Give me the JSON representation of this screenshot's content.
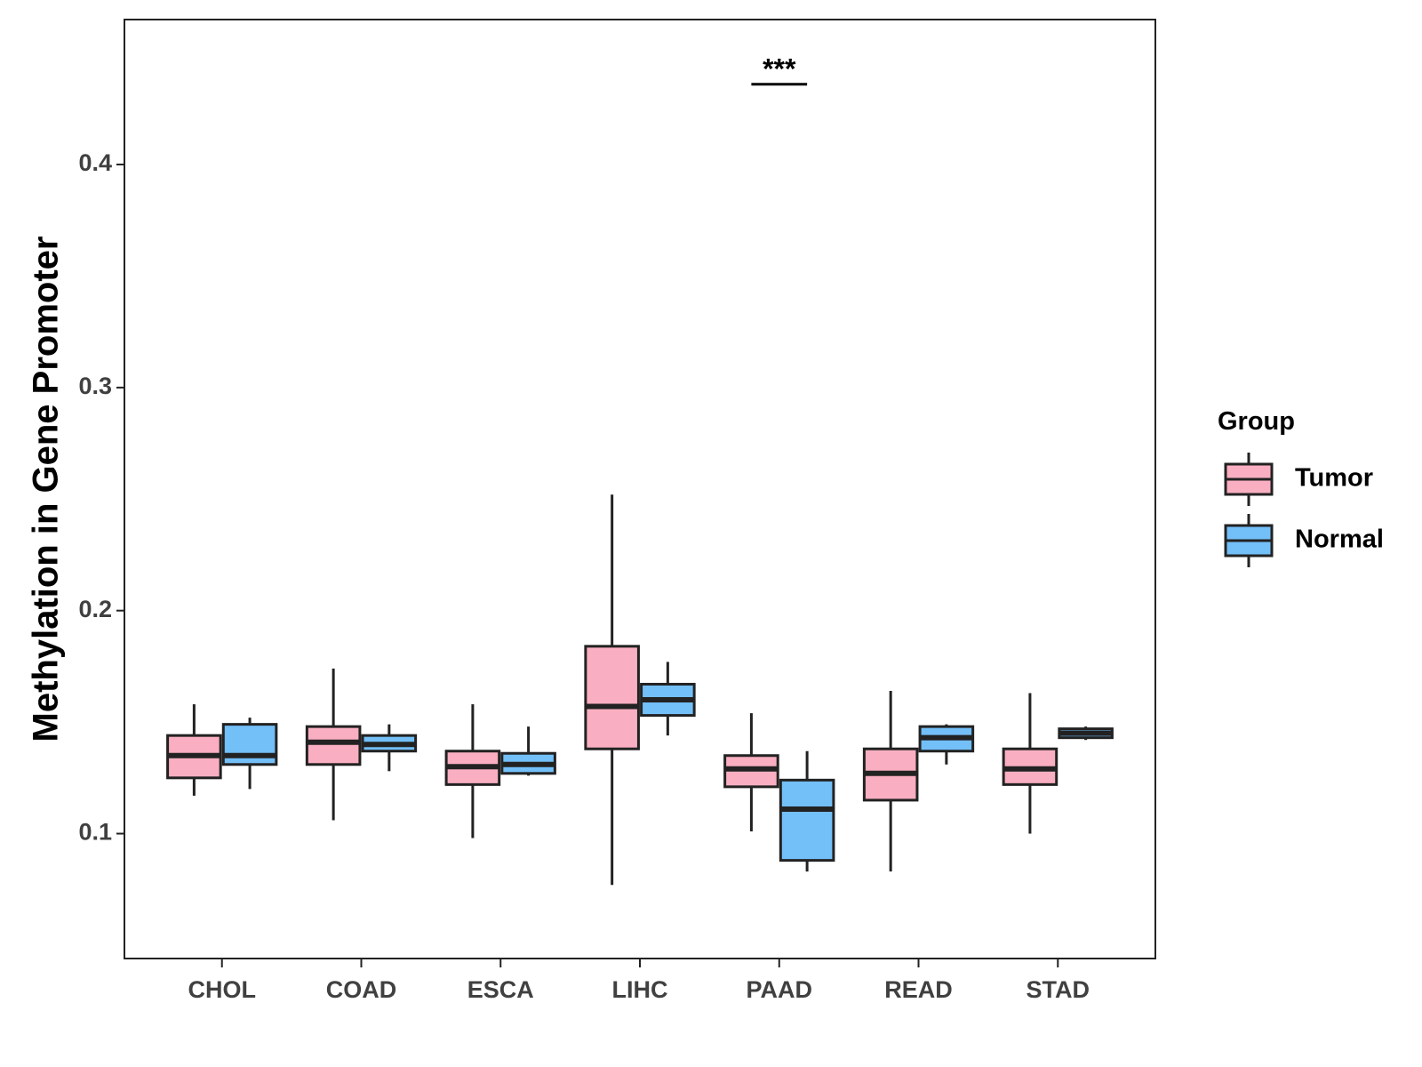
{
  "chart_data": {
    "type": "boxplot",
    "title": "",
    "xlabel": "",
    "ylabel": "Methylation in Gene Promoter",
    "ylim": [
      0.044,
      0.465
    ],
    "yticks": [
      0.1,
      0.2,
      0.3,
      0.4
    ],
    "ytick_labels": [
      "0.1",
      "0.2",
      "0.3",
      "0.4"
    ],
    "categories": [
      "CHOL",
      "COAD",
      "ESCA",
      "LIHC",
      "PAAD",
      "READ",
      "STAD"
    ],
    "grid": false,
    "legend": {
      "title": "Group",
      "position": "right",
      "entries": [
        {
          "name": "Tumor",
          "color": "#F9AFC1"
        },
        {
          "name": "Normal",
          "color": "#73BFF8"
        }
      ]
    },
    "series": [
      {
        "name": "Tumor",
        "color": "#F9AFC1",
        "boxes": [
          {
            "category": "CHOL",
            "min": 0.117,
            "q1": 0.125,
            "median": 0.135,
            "q3": 0.144,
            "max": 0.158
          },
          {
            "category": "COAD",
            "min": 0.106,
            "q1": 0.131,
            "median": 0.141,
            "q3": 0.148,
            "max": 0.174
          },
          {
            "category": "ESCA",
            "min": 0.098,
            "q1": 0.122,
            "median": 0.13,
            "q3": 0.137,
            "max": 0.158
          },
          {
            "category": "LIHC",
            "min": 0.077,
            "q1": 0.138,
            "median": 0.157,
            "q3": 0.184,
            "max": 0.252
          },
          {
            "category": "PAAD",
            "min": 0.101,
            "q1": 0.121,
            "median": 0.129,
            "q3": 0.135,
            "max": 0.154
          },
          {
            "category": "READ",
            "min": 0.083,
            "q1": 0.115,
            "median": 0.127,
            "q3": 0.138,
            "max": 0.164
          },
          {
            "category": "STAD",
            "min": 0.1,
            "q1": 0.122,
            "median": 0.129,
            "q3": 0.138,
            "max": 0.163
          }
        ]
      },
      {
        "name": "Normal",
        "color": "#73BFF8",
        "boxes": [
          {
            "category": "CHOL",
            "min": 0.12,
            "q1": 0.131,
            "median": 0.135,
            "q3": 0.149,
            "max": 0.152
          },
          {
            "category": "COAD",
            "min": 0.128,
            "q1": 0.137,
            "median": 0.14,
            "q3": 0.144,
            "max": 0.149
          },
          {
            "category": "ESCA",
            "min": 0.126,
            "q1": 0.127,
            "median": 0.131,
            "q3": 0.136,
            "max": 0.148
          },
          {
            "category": "LIHC",
            "min": 0.144,
            "q1": 0.153,
            "median": 0.16,
            "q3": 0.167,
            "max": 0.177
          },
          {
            "category": "PAAD",
            "min": 0.083,
            "q1": 0.088,
            "median": 0.111,
            "q3": 0.124,
            "max": 0.137
          },
          {
            "category": "READ",
            "min": 0.131,
            "q1": 0.137,
            "median": 0.143,
            "q3": 0.148,
            "max": 0.149
          },
          {
            "category": "STAD",
            "min": 0.142,
            "q1": 0.143,
            "median": 0.145,
            "q3": 0.147,
            "max": 0.148
          }
        ]
      }
    ],
    "annotations": [
      {
        "category": "PAAD",
        "text": "***",
        "y": 0.436
      }
    ]
  }
}
